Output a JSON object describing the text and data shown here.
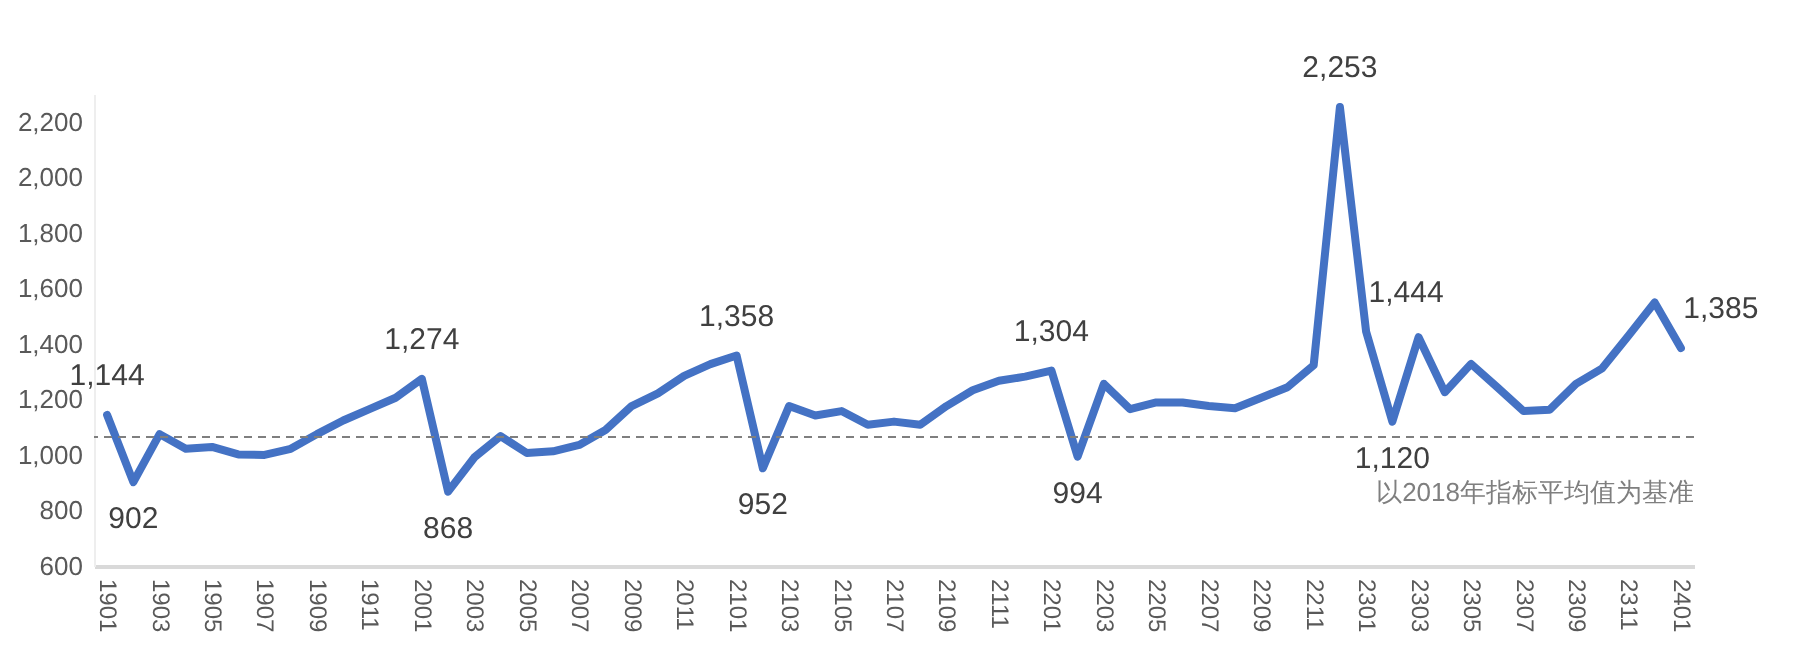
{
  "chart_data": {
    "type": "line",
    "categories": [
      "1901",
      null,
      "1903",
      null,
      "1905",
      null,
      "1907",
      null,
      "1909",
      null,
      "1911",
      null,
      "2001",
      null,
      "2003",
      null,
      "2005",
      null,
      "2007",
      null,
      "2009",
      null,
      "2011",
      null,
      "2101",
      null,
      "2103",
      null,
      "2105",
      null,
      "2107",
      null,
      "2109",
      null,
      "2111",
      null,
      "2201",
      null,
      "2203",
      null,
      "2205",
      null,
      "2207",
      null,
      "2209",
      null,
      "2211",
      null,
      "2301",
      null,
      "2303",
      null,
      "2305",
      null,
      "2307",
      null,
      "2309",
      null,
      "2311",
      null,
      "2401"
    ],
    "series": [
      {
        "color": "#4472c4",
        "values": [
          1144,
          902,
          1075,
          1022,
          1029,
          1002,
          1000,
          1022,
          1075,
          1124,
          1165,
          1206,
          1274,
          868,
          991,
          1068,
          1007,
          1013,
          1036,
          1090,
          1176,
          1222,
          1285,
          1327,
          1358,
          952,
          1176,
          1142,
          1158,
          1109,
          1120,
          1109,
          1176,
          1233,
          1267,
          1282,
          1304,
          994,
          1256,
          1165,
          1189,
          1189,
          1176,
          1168,
          1206,
          1244,
          1323,
          2253,
          1444,
          1120,
          1424,
          1226,
          1328,
          1244,
          1158,
          1163,
          1256,
          1312,
          1429,
          1549,
          1385
        ],
        "value_labels": [
          "1,144",
          "902",
          null,
          null,
          null,
          null,
          null,
          null,
          null,
          null,
          null,
          null,
          "1,274",
          "868",
          null,
          null,
          null,
          null,
          null,
          null,
          null,
          null,
          null,
          null,
          "1,358",
          "952",
          null,
          null,
          null,
          null,
          null,
          null,
          null,
          null,
          null,
          null,
          "1,304",
          "994",
          null,
          null,
          null,
          null,
          null,
          null,
          null,
          null,
          null,
          "2,253",
          "1,444",
          "1,120",
          null,
          null,
          null,
          null,
          null,
          null,
          null,
          null,
          null,
          null,
          "1,385"
        ]
      }
    ],
    "ylim": [
      600,
      2300
    ],
    "yticks": [
      {
        "value": 600,
        "label": "600"
      },
      {
        "value": 800,
        "label": "800"
      },
      {
        "value": 1000,
        "label": "1,000"
      },
      {
        "value": 1200,
        "label": "1,200"
      },
      {
        "value": 1400,
        "label": "1,400"
      },
      {
        "value": 1600,
        "label": "1,600"
      },
      {
        "value": 1800,
        "label": "1,800"
      },
      {
        "value": 2000,
        "label": "2,000"
      },
      {
        "value": 2200,
        "label": "2,200"
      }
    ],
    "grid": false,
    "marker": "none",
    "line_style": "solid",
    "ref_lines": [
      {
        "axis": "y",
        "value": 1065,
        "label": "以2018年指标平均值为基准",
        "color": "#7f7f7f",
        "line_style": "dashed"
      }
    ]
  }
}
